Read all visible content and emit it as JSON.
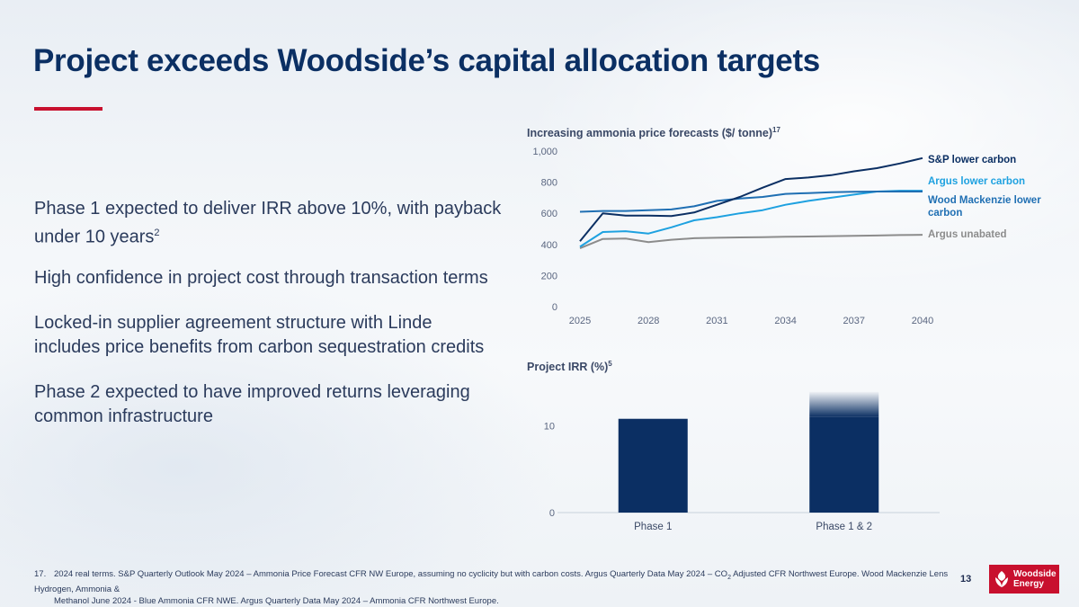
{
  "slide": {
    "title": "Project exceeds Woodside’s capital allocation targets",
    "bullets": [
      {
        "text": "Phase 1 expected to deliver IRR above 10%, with payback under 10 years",
        "sup": "2"
      },
      {
        "text": "High confidence in project cost through transaction terms",
        "sup": ""
      },
      {
        "text": "Locked-in supplier agreement structure with Linde includes price benefits from carbon sequestration credits",
        "sup": ""
      },
      {
        "text": "Phase 2 expected to have improved returns leveraging common infrastructure",
        "sup": ""
      }
    ],
    "footnote": {
      "number": "17.",
      "line1": "2024 real terms. S&P Quarterly Outlook May 2024 – Ammonia Price Forecast CFR NW Europe, assuming no cyclicity but with carbon costs.  Argus Quarterly Data May 2024 – CO",
      "sub": "2",
      "line1b": " Adjusted CFR Northwest Europe.  Wood Mackenzie Lens Hydrogen, Ammonia &",
      "line2": "Methanol June 2024 - Blue Ammonia CFR NWE.  Argus Quarterly Data May 2024 – Ammonia CFR Northwest Europe."
    },
    "page_number": "13",
    "logo": {
      "line1": "Woodside",
      "line2": "Energy",
      "icon": "woodside-leaf-icon"
    }
  },
  "colors": {
    "title": "#0b2f63",
    "accent_red": "#c8102e",
    "sp_lower_carbon": "#0b2f63",
    "argus_lower_carbon": "#1ea1e0",
    "wood_mackenzie": "#1f6fb3",
    "argus_unabated": "#8c8c8c",
    "bar": "#0b2f63"
  },
  "chart_data": [
    {
      "type": "line",
      "title": "Increasing ammonia price forecasts ($/ tonne)",
      "title_sup": "17",
      "x": [
        2025,
        2026,
        2027,
        2028,
        2029,
        2030,
        2031,
        2032,
        2033,
        2034,
        2035,
        2036,
        2037,
        2038,
        2039,
        2040
      ],
      "xticks": [
        "2025",
        "2028",
        "2031",
        "2034",
        "2037",
        "2040"
      ],
      "xtick_values": [
        2025,
        2028,
        2031,
        2034,
        2037,
        2040
      ],
      "yticks": [
        "0",
        "200",
        "400",
        "600",
        "800",
        "1,000"
      ],
      "ytick_values": [
        0,
        200,
        400,
        600,
        800,
        1000
      ],
      "ylim": [
        0,
        1000
      ],
      "xlim": [
        2025,
        2040
      ],
      "legend": "right",
      "series": [
        {
          "name": "S&P lower carbon",
          "color_key": "sp_lower_carbon",
          "values": [
            420,
            600,
            585,
            585,
            582,
            605,
            655,
            705,
            765,
            820,
            830,
            845,
            870,
            890,
            920,
            955
          ]
        },
        {
          "name": "Argus lower carbon",
          "color_key": "argus_lower_carbon",
          "values": [
            385,
            480,
            485,
            470,
            510,
            555,
            575,
            600,
            620,
            655,
            680,
            700,
            720,
            740,
            745,
            745
          ]
        },
        {
          "name": "Wood Mackenzie lower carbon",
          "color_key": "wood_mackenzie",
          "values": [
            610,
            615,
            615,
            620,
            625,
            645,
            680,
            695,
            705,
            725,
            730,
            735,
            738,
            740,
            740,
            740
          ]
        },
        {
          "name": "Argus unabated",
          "color_key": "argus_unabated",
          "values": [
            375,
            435,
            438,
            415,
            430,
            440,
            443,
            445,
            447,
            449,
            451,
            453,
            455,
            457,
            460,
            462
          ]
        }
      ]
    },
    {
      "type": "bar",
      "title": "Project IRR (%)",
      "title_sup": "5",
      "categories": [
        "Phase 1",
        "Phase 1 & 2"
      ],
      "values": [
        10.8,
        11.0
      ],
      "faded_extension": [
        null,
        13.9
      ],
      "yticks": [
        "0",
        "10"
      ],
      "ytick_values": [
        0,
        10
      ],
      "ylim": [
        0,
        14.5
      ]
    }
  ]
}
